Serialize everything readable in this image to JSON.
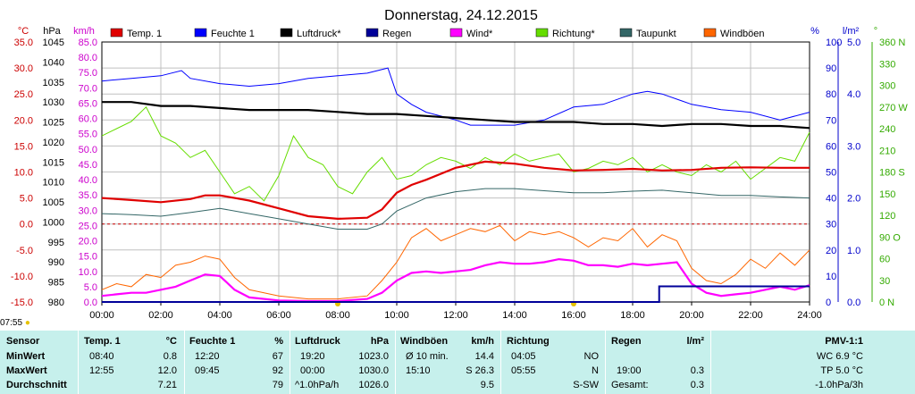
{
  "chart_data": {
    "type": "line",
    "title": "Donnerstag, 24.12.2015",
    "x_ticks": [
      "00:00",
      "02:00",
      "04:00",
      "06:00",
      "08:00",
      "10:00",
      "12:00",
      "14:00",
      "16:00",
      "18:00",
      "20:00",
      "22:00",
      "24:00"
    ],
    "axes_left": [
      {
        "unit": "°C",
        "color": "#cc0000",
        "ticks": [
          "35.0",
          "30.0",
          "25.0",
          "20.0",
          "15.0",
          "10.0",
          "5.0",
          "0.0",
          "-5.0",
          "-10.0",
          "-15.0"
        ],
        "range": [
          -15,
          35
        ]
      },
      {
        "unit": "hPa",
        "color": "#000000",
        "ticks": [
          "1045",
          "1040",
          "1035",
          "1030",
          "1025",
          "1020",
          "1015",
          "1010",
          "1005",
          "1000",
          "995",
          "990",
          "985",
          "980"
        ],
        "range": [
          980,
          1045
        ]
      },
      {
        "unit": "km/h",
        "color": "#cc00cc",
        "ticks": [
          "85.0",
          "80.0",
          "75.0",
          "70.0",
          "65.0",
          "60.0",
          "55.0",
          "50.0",
          "45.0",
          "40.0",
          "35.0",
          "30.0",
          "25.0",
          "20.0",
          "15.0",
          "10.0",
          "5.0",
          "0.0"
        ],
        "range": [
          0,
          85
        ]
      }
    ],
    "axes_right": [
      {
        "unit": "%",
        "color": "#0000cc",
        "ticks": [
          "100",
          "90",
          "80",
          "70",
          "60",
          "50",
          "40",
          "30",
          "20",
          "10",
          "0"
        ],
        "range": [
          0,
          100
        ]
      },
      {
        "unit": "l/m²",
        "color": "#0000cc",
        "ticks": [
          "5.0",
          "4.0",
          "3.0",
          "2.0",
          "1.0",
          "0.0"
        ],
        "range": [
          0,
          5
        ]
      },
      {
        "unit": "°",
        "color": "#33aa00",
        "ticks": [
          "360 N",
          "330",
          "300",
          "270 W",
          "240",
          "210",
          "180 S",
          "150",
          "120",
          "90 O",
          "60",
          "30",
          "0 N"
        ],
        "range": [
          0,
          360
        ]
      }
    ],
    "legend": [
      {
        "name": "Temp. 1",
        "color": "#e00000"
      },
      {
        "name": "Feuchte 1",
        "color": "#0000ff"
      },
      {
        "name": "Luftdruck*",
        "color": "#000000"
      },
      {
        "name": "Regen",
        "color": "#000099"
      },
      {
        "name": "Wind*",
        "color": "#ff00ff"
      },
      {
        "name": "Richtung*",
        "color": "#66dd00"
      },
      {
        "name": "Taupunkt",
        "color": "#336666"
      },
      {
        "name": "Windböen",
        "color": "#ff6600"
      }
    ],
    "series": [
      {
        "name": "Temp. 1",
        "unit": "°C",
        "color": "#e00000",
        "x": [
          0,
          1,
          2,
          3,
          3.5,
          4,
          4.5,
          5,
          6,
          7,
          8,
          9,
          9.5,
          10,
          10.5,
          11,
          12,
          13,
          14,
          15,
          16,
          17,
          18,
          19,
          20,
          21,
          22,
          23,
          24
        ],
        "y": [
          5.0,
          4.6,
          4.2,
          4.8,
          5.5,
          5.5,
          5.0,
          4.5,
          3.0,
          1.5,
          1.0,
          1.2,
          2.8,
          6.0,
          7.5,
          8.5,
          10.8,
          12.0,
          11.6,
          10.8,
          10.3,
          10.4,
          10.6,
          10.3,
          10.4,
          10.8,
          10.9,
          10.8,
          10.8
        ]
      },
      {
        "name": "Feuchte 1",
        "unit": "%",
        "color": "#0000ff",
        "x": [
          0,
          1,
          2,
          2.7,
          3,
          4,
          5,
          6,
          7,
          8,
          9,
          9.7,
          10,
          10.5,
          11,
          12,
          12.5,
          13,
          14,
          15,
          16,
          17,
          18,
          18.5,
          19,
          20,
          21,
          22,
          23,
          24
        ],
        "y": [
          85,
          86,
          87,
          89,
          86,
          84,
          83,
          84,
          86,
          87,
          88,
          90,
          80,
          76,
          73,
          70,
          68,
          68,
          68,
          70,
          75,
          76,
          80,
          81,
          80,
          76,
          74,
          73,
          70,
          73
        ]
      },
      {
        "name": "Luftdruck*",
        "unit": "hPa",
        "color": "#000000",
        "x": [
          0,
          1,
          2,
          3,
          4,
          5,
          6,
          7,
          8,
          9,
          10,
          11,
          12,
          13,
          14,
          15,
          16,
          17,
          18,
          19,
          20,
          21,
          22,
          23,
          24
        ],
        "y": [
          1030.0,
          1030.0,
          1029.0,
          1029.0,
          1028.5,
          1028.0,
          1028.0,
          1028.0,
          1027.5,
          1027.0,
          1027.0,
          1026.5,
          1026.0,
          1025.5,
          1025.0,
          1025.0,
          1025.0,
          1024.5,
          1024.5,
          1024.0,
          1024.5,
          1024.5,
          1024.0,
          1024.0,
          1023.5
        ]
      },
      {
        "name": "Taupunkt",
        "unit": "°C",
        "color": "#336666",
        "x": [
          0,
          1,
          2,
          3,
          4,
          5,
          6,
          7,
          8,
          9,
          9.5,
          10,
          11,
          12,
          13,
          14,
          15,
          16,
          17,
          18,
          19,
          20,
          21,
          22,
          23,
          24
        ],
        "y": [
          2.0,
          1.8,
          1.5,
          2.2,
          3.0,
          2.0,
          1.0,
          0.0,
          -1.0,
          -1.0,
          0.0,
          2.5,
          5.0,
          6.2,
          6.8,
          6.8,
          6.4,
          6.0,
          6.0,
          6.3,
          6.5,
          6.0,
          5.5,
          5.5,
          5.2,
          5.0
        ]
      },
      {
        "name": "Richtung*",
        "unit": "°",
        "color": "#66dd00",
        "x": [
          0,
          0.5,
          1,
          1.5,
          2,
          2.5,
          3,
          3.5,
          4,
          4.5,
          5,
          5.5,
          6,
          6.5,
          7,
          7.5,
          8,
          8.5,
          9,
          9.5,
          10,
          10.5,
          11,
          11.5,
          12,
          12.5,
          13,
          13.5,
          14,
          14.5,
          15,
          15.5,
          16,
          16.5,
          17,
          17.5,
          18,
          18.5,
          19,
          19.5,
          20,
          20.5,
          21,
          21.5,
          22,
          22.5,
          23,
          23.5,
          24
        ],
        "y": [
          230,
          240,
          250,
          270,
          230,
          220,
          200,
          210,
          180,
          150,
          160,
          140,
          175,
          230,
          200,
          190,
          160,
          150,
          180,
          200,
          170,
          175,
          190,
          200,
          195,
          185,
          200,
          190,
          205,
          195,
          200,
          205,
          180,
          185,
          195,
          190,
          200,
          180,
          190,
          180,
          175,
          190,
          180,
          195,
          170,
          185,
          200,
          195,
          235
        ]
      },
      {
        "name": "Wind*",
        "unit": "km/h",
        "color": "#ff00ff",
        "x": [
          0,
          0.5,
          1,
          1.5,
          2,
          2.5,
          3,
          3.5,
          4,
          4.5,
          5,
          6,
          7,
          8,
          9,
          9.5,
          10,
          10.5,
          11,
          11.5,
          12,
          12.5,
          13,
          13.5,
          14,
          14.5,
          15,
          15.5,
          16,
          16.5,
          17,
          17.5,
          18,
          18.5,
          19,
          19.5,
          20,
          20.5,
          21,
          21.5,
          22,
          22.5,
          23,
          23.5,
          24
        ],
        "y": [
          2.0,
          2.5,
          3.0,
          3.0,
          4.0,
          5.0,
          7.0,
          9.0,
          8.5,
          4.0,
          1.5,
          0.5,
          0.3,
          0.3,
          1.0,
          3.0,
          7.0,
          9.5,
          10.0,
          9.5,
          10.0,
          10.5,
          12.0,
          13.0,
          12.5,
          12.5,
          13.0,
          14.0,
          13.5,
          12.0,
          12.0,
          11.5,
          12.5,
          12.0,
          12.5,
          13.0,
          6.0,
          3.0,
          2.0,
          2.5,
          3.0,
          4.0,
          5.0,
          4.0,
          5.5
        ]
      },
      {
        "name": "Windböen",
        "unit": "km/h",
        "color": "#ff6600",
        "x": [
          0,
          0.5,
          1,
          1.5,
          2,
          2.5,
          3,
          3.5,
          4,
          4.5,
          5,
          6,
          7,
          8,
          9,
          9.5,
          10,
          10.5,
          11,
          11.5,
          12,
          12.5,
          13,
          13.5,
          14,
          14.5,
          15,
          15.5,
          16,
          16.5,
          17,
          17.5,
          18,
          18.5,
          19,
          19.5,
          20,
          20.5,
          21,
          21.5,
          22,
          22.5,
          23,
          23.5,
          24
        ],
        "y": [
          4,
          6,
          5,
          9,
          8,
          12,
          13,
          15,
          14,
          8,
          4,
          2,
          1,
          1,
          2,
          7,
          13,
          21,
          24,
          20,
          22,
          24,
          23,
          25,
          20,
          23,
          22,
          23,
          21,
          18,
          21,
          20,
          24,
          18,
          22,
          20,
          11,
          7,
          6,
          9,
          14,
          11,
          16,
          12,
          17
        ]
      },
      {
        "name": "Regen",
        "unit": "l/m²",
        "color": "#000099",
        "x": [
          0,
          18.9,
          18.9,
          24
        ],
        "y": [
          0,
          0,
          0.3,
          0.3
        ]
      }
    ]
  },
  "markers": {
    "time_now": "07:55"
  },
  "stats": {
    "headers": {
      "sensor": "Sensor",
      "temp": "Temp. 1",
      "temp_unit": "°C",
      "feuchte": "Feuchte 1",
      "feuchte_unit": "%",
      "luftdruck": "Luftdruck",
      "luftdruck_unit": "hPa",
      "windboen": "Windböen",
      "windboen_unit": "km/h",
      "richtung": "Richtung",
      "regen": "Regen",
      "regen_unit": "l/m²",
      "pmv": "PMV-1:1"
    },
    "row_labels": {
      "min": "MinWert",
      "max": "MaxWert",
      "avg": "Durchschnitt"
    },
    "temp": {
      "min_time": "08:40",
      "min_val": "0.8",
      "max_time": "12:55",
      "max_val": "12.0",
      "avg": "7.21"
    },
    "feuchte": {
      "min_time": "12:20",
      "min_val": "67",
      "max_time": "09:45",
      "max_val": "92",
      "avg": "79"
    },
    "luftdruck": {
      "min_time": "19:20",
      "min_val": "1023.0",
      "max_time": "00:00",
      "max_val": "1030.0",
      "avg_label": "^1.0hPa/h",
      "avg": "1026.0"
    },
    "windboen": {
      "min_label": "Ø 10 min.",
      "min_val": "14.4",
      "max_time": "15:10",
      "max_val": "S 26.3",
      "avg": "9.5"
    },
    "richtung": {
      "min_time": "04:05",
      "min_val": "NO",
      "max_time": "05:55",
      "max_val": "N",
      "avg": "S-SW"
    },
    "regen": {
      "max_time": "19:00",
      "max_val": "0.3",
      "avg_label": "Gesamt:",
      "avg": "0.3"
    },
    "pmv": {
      "min": "WC 6.9 °C",
      "max": "TP 5.0 °C",
      "avg": "-1.0hPa/3h"
    }
  }
}
